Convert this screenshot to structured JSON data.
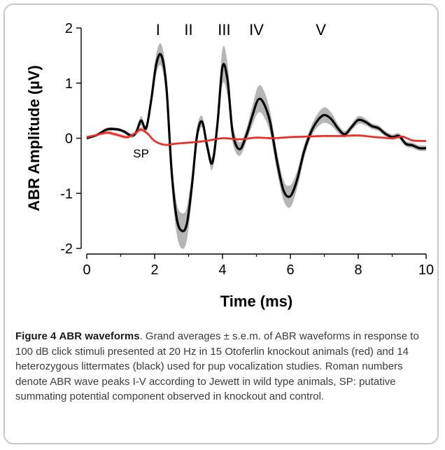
{
  "chart_data": {
    "type": "line",
    "xlabel": "Time (ms)",
    "ylabel": "ABR Amplitude (µV)",
    "xlim": [
      0,
      10
    ],
    "ylim": [
      -2,
      2
    ],
    "x_ticks": [
      "0",
      "2",
      "4",
      "6",
      "8",
      "10"
    ],
    "y_ticks": [
      "2",
      "1",
      "0",
      "-1",
      "-2"
    ],
    "grid": false,
    "peak_labels": [
      {
        "text": "I",
        "x": 2.1
      },
      {
        "text": "II",
        "x": 3.0
      },
      {
        "text": "III",
        "x": 4.05
      },
      {
        "text": "IV",
        "x": 5.0
      },
      {
        "text": "V",
        "x": 6.9
      }
    ],
    "annotations": [
      {
        "text": "SP",
        "x": 1.6,
        "y": -0.35
      }
    ],
    "series": [
      {
        "color": "#000000",
        "band_color": "#b5b5b5",
        "x": [
          0,
          0.3,
          0.6,
          0.9,
          1.1,
          1.3,
          1.45,
          1.6,
          1.75,
          1.9,
          2.05,
          2.2,
          2.35,
          2.5,
          2.65,
          2.8,
          2.95,
          3.1,
          3.25,
          3.4,
          3.55,
          3.7,
          3.85,
          4.0,
          4.15,
          4.3,
          4.5,
          4.7,
          4.9,
          5.05,
          5.2,
          5.4,
          5.6,
          5.8,
          6.0,
          6.2,
          6.4,
          6.6,
          6.8,
          7.0,
          7.2,
          7.4,
          7.6,
          7.8,
          8.0,
          8.2,
          8.4,
          8.6,
          8.8,
          9.0,
          9.2,
          9.4,
          9.6,
          9.8,
          10.0
        ],
        "y": [
          0.0,
          0.06,
          0.16,
          0.16,
          0.12,
          0.05,
          0.1,
          0.32,
          0.18,
          0.7,
          1.35,
          1.5,
          0.9,
          -0.6,
          -1.45,
          -1.68,
          -1.55,
          -0.85,
          0.05,
          0.3,
          -0.15,
          -0.45,
          0.25,
          1.3,
          1.05,
          0.1,
          -0.2,
          0.05,
          0.45,
          0.7,
          0.65,
          0.3,
          -0.4,
          -0.95,
          -1.05,
          -0.75,
          -0.25,
          0.1,
          0.32,
          0.42,
          0.35,
          0.18,
          0.07,
          0.2,
          0.33,
          0.3,
          0.22,
          0.18,
          0.08,
          0.02,
          0.04,
          -0.1,
          -0.13,
          -0.18,
          -0.18
        ],
        "sem": [
          0.02,
          0.02,
          0.03,
          0.03,
          0.03,
          0.04,
          0.05,
          0.08,
          0.06,
          0.12,
          0.18,
          0.2,
          0.22,
          0.25,
          0.28,
          0.32,
          0.3,
          0.22,
          0.15,
          0.1,
          0.1,
          0.12,
          0.15,
          0.32,
          0.3,
          0.18,
          0.12,
          0.12,
          0.18,
          0.24,
          0.24,
          0.2,
          0.18,
          0.18,
          0.2,
          0.16,
          0.12,
          0.1,
          0.12,
          0.14,
          0.12,
          0.08,
          0.06,
          0.06,
          0.07,
          0.06,
          0.05,
          0.05,
          0.05,
          0.05,
          0.05,
          0.05,
          0.05,
          0.05,
          0.05
        ]
      },
      {
        "color": "#e8302a",
        "band_color": "#f4b5b0",
        "x": [
          0,
          0.3,
          0.6,
          0.9,
          1.2,
          1.45,
          1.6,
          1.8,
          2.0,
          2.3,
          2.6,
          3.0,
          3.5,
          4.0,
          4.5,
          5.0,
          5.5,
          6.0,
          6.5,
          7.0,
          7.5,
          8.0,
          8.5,
          9.0,
          9.3,
          9.6,
          10.0
        ],
        "y": [
          0.02,
          0.06,
          0.1,
          0.06,
          0.02,
          0.1,
          0.16,
          0.08,
          -0.05,
          -0.12,
          -0.1,
          -0.08,
          -0.05,
          0.0,
          -0.02,
          0.01,
          0.0,
          0.02,
          0.03,
          0.04,
          0.04,
          0.05,
          0.02,
          0.0,
          0.03,
          -0.04,
          -0.05
        ],
        "sem": [
          0.02,
          0.02,
          0.03,
          0.03,
          0.03,
          0.03,
          0.04,
          0.03,
          0.02,
          0.02,
          0.02,
          0.02,
          0.02,
          0.02,
          0.02,
          0.02,
          0.02,
          0.02,
          0.02,
          0.02,
          0.02,
          0.02,
          0.02,
          0.02,
          0.02,
          0.02,
          0.02
        ]
      }
    ]
  },
  "caption": {
    "fig_num": "Figure 4",
    "fig_title": "ABR waveforms",
    "text": ". Grand averages ± s.e.m. of ABR waveforms in response to 100 dB click stimuli presented at 20 Hz in 15 Otoferlin knockout animals (red) and 14 heterozygous littermates (black) used for pup vocalization studies. Roman numbers denote ABR wave peaks I-V according to Jewett in wild type animals, SP: putative summating potential component observed in knockout and control."
  }
}
